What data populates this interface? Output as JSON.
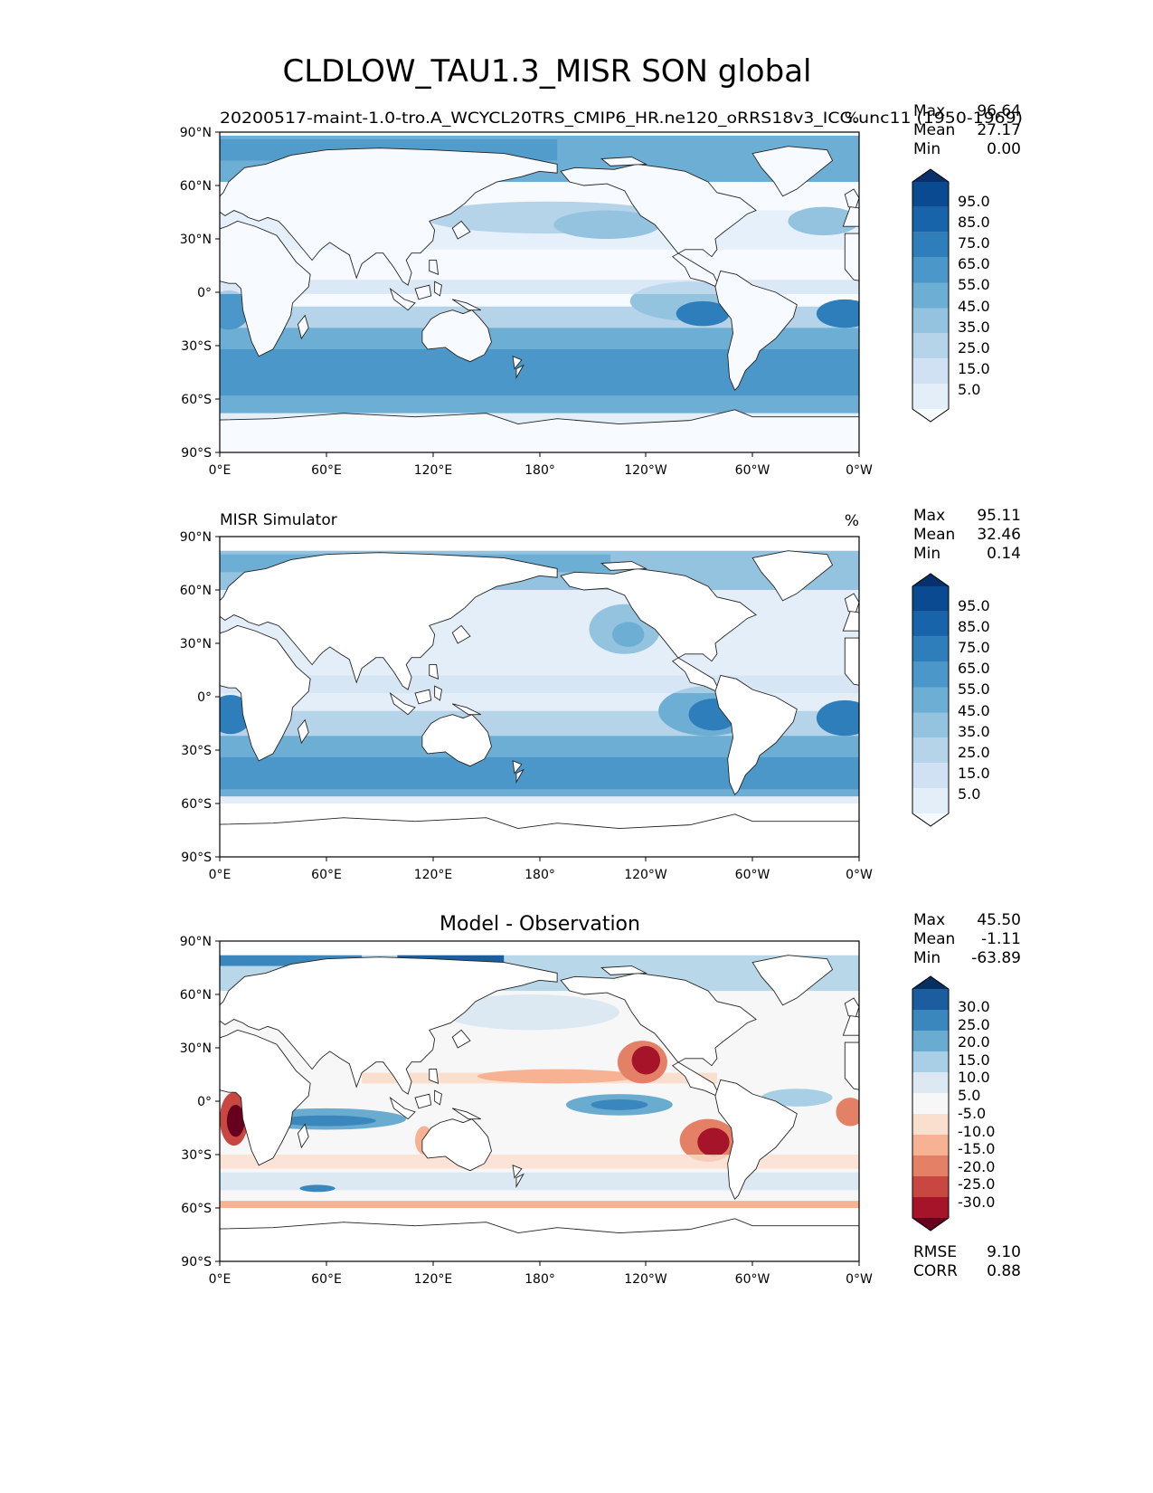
{
  "figure": {
    "title": "CLDLOW_TAU1.3_MISR SON global"
  },
  "axes": {
    "lat_ticks": [
      "90°N",
      "60°N",
      "30°N",
      "0°",
      "30°S",
      "60°S",
      "90°S"
    ],
    "lon_ticks": [
      "0°E",
      "60°E",
      "120°E",
      "180°",
      "120°W",
      "60°W",
      "0°W"
    ]
  },
  "colors": {
    "blues": [
      "#f7fbff",
      "#e3eef9",
      "#cfe1f2",
      "#b5d4e9",
      "#93c3df",
      "#6daed5",
      "#4b97c9",
      "#2f7ebc",
      "#1864aa",
      "#0a4a90",
      "#08306b"
    ],
    "diverging": [
      "#67001f",
      "#a51429",
      "#c94741",
      "#e48066",
      "#f6b293",
      "#fbdfce",
      "#f7f7f7",
      "#dce9f2",
      "#a8cfe5",
      "#6aacd0",
      "#3a87bd",
      "#1b5d9f",
      "#053061"
    ]
  },
  "panels": [
    {
      "id": "model",
      "title_left": "20200517-maint-1.0-tro.A_WCYCL20TRS_CMIP6_HR.ne120_oRRS18v3_ICG.unc11 (1950-1969)",
      "title_center": "",
      "units": "%",
      "stats": [
        {
          "label": "Max",
          "value": "96.64"
        },
        {
          "label": "Mean",
          "value": "27.17"
        },
        {
          "label": "Min",
          "value": "0.00"
        }
      ],
      "colorbar_labels": [
        "95.0",
        "85.0",
        "75.0",
        "65.0",
        "55.0",
        "45.0",
        "35.0",
        "25.0",
        "15.0",
        "5.0"
      ]
    },
    {
      "id": "obs",
      "title_left": "MISR Simulator",
      "title_center": "",
      "units": "%",
      "stats": [
        {
          "label": "Max",
          "value": "95.11"
        },
        {
          "label": "Mean",
          "value": "32.46"
        },
        {
          "label": "Min",
          "value": "0.14"
        }
      ],
      "colorbar_labels": [
        "95.0",
        "85.0",
        "75.0",
        "65.0",
        "55.0",
        "45.0",
        "35.0",
        "25.0",
        "15.0",
        "5.0"
      ]
    },
    {
      "id": "diff",
      "title_left": "",
      "title_center": "Model - Observation",
      "units": "",
      "stats": [
        {
          "label": "Max",
          "value": "45.50"
        },
        {
          "label": "Mean",
          "value": "-1.11"
        },
        {
          "label": "Min",
          "value": "-63.89"
        }
      ],
      "colorbar_labels": [
        "30.0",
        "25.0",
        "20.0",
        "15.0",
        "10.0",
        "5.0",
        "-5.0",
        "-10.0",
        "-15.0",
        "-20.0",
        "-25.0",
        "-30.0"
      ],
      "metrics": [
        {
          "label": "RMSE",
          "value": "9.10"
        },
        {
          "label": "CORR",
          "value": "0.88"
        }
      ]
    }
  ]
}
